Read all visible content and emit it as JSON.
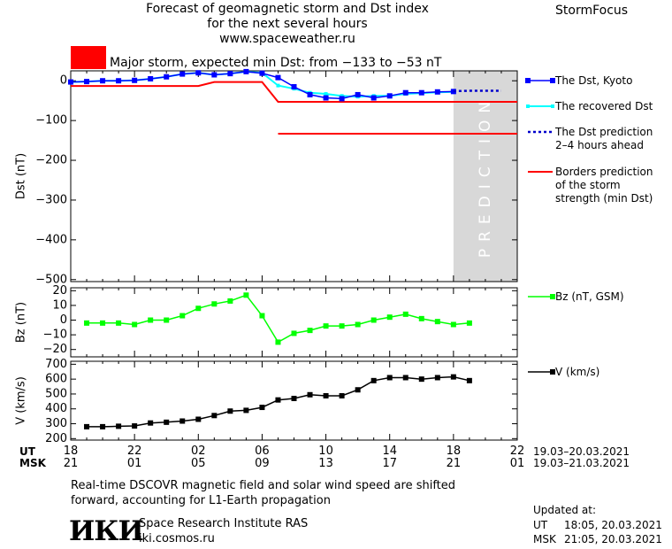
{
  "header": {
    "title_line1": "Forecast of geomagnetic storm and Dst index",
    "title_line2": "for the next several hours",
    "website": "www.spaceweather.ru",
    "brand": "StormFocus"
  },
  "storm_banner": {
    "text": "Major storm, expected min Dst: from −133 to −53 nT",
    "color": "#ff0000"
  },
  "prediction_label": "PREDICTION",
  "colors": {
    "dst": "#0000ff",
    "recovered": "#00ffff",
    "prediction": "#0000cc",
    "borders": "#ff0000",
    "bz": "#00ff00",
    "v": "#000000",
    "prediction_zone": "#d8d8d8"
  },
  "legend": {
    "dst": "The Dst, Kyoto",
    "recovered": "The recovered Dst",
    "prediction_line1": "The Dst prediction",
    "prediction_line2": "2–4 hours ahead",
    "borders_line1": "Borders prediction",
    "borders_line2": "of the storm",
    "borders_line3": "strength (min Dst)",
    "bz": "Bz (nT, GSM)",
    "v": "V (km/s)"
  },
  "time_axis": {
    "ut_label": "UT",
    "msk_label": "MSK",
    "ut_ticks": [
      "18",
      "22",
      "02",
      "06",
      "10",
      "14",
      "18",
      "22"
    ],
    "msk_ticks": [
      "21",
      "01",
      "05",
      "09",
      "13",
      "17",
      "21",
      "01"
    ],
    "ut_range": "19.03–20.03.2021",
    "msk_range": "19.03–21.03.2021"
  },
  "footer": {
    "note_line1": "Real-time DSCOVR magnetic field and solar wind speed are shifted",
    "note_line2": "forward, accounting for L1-Earth propagation",
    "logo_text": "ИКИ",
    "institute": "Space Research Institute RAS",
    "institute_site": "iki.cosmos.ru",
    "updated_label": "Updated at:",
    "updated_ut_label": "UT",
    "updated_ut": "18:05, 20.03.2021",
    "updated_msk_label": "MSK",
    "updated_msk": "21:05, 20.03.2021"
  },
  "chart_data": [
    {
      "type": "line",
      "ylabel": "Dst (nT)",
      "x_unit": "hours UT from 19.03.2021 00:00",
      "xlim": [
        18,
        46
      ],
      "ylim": [
        -505,
        25
      ],
      "yticks": [
        0,
        -100,
        -200,
        -300,
        -400,
        -500
      ],
      "prediction_zone": [
        42,
        46
      ],
      "series": [
        {
          "name": "The Dst, Kyoto",
          "x": [
            18,
            19,
            20,
            21,
            22,
            23,
            24,
            25,
            26,
            27,
            28,
            29,
            30,
            31,
            32,
            33,
            34,
            35,
            36,
            37,
            38,
            39,
            40,
            41,
            42
          ],
          "values": [
            -3,
            -2,
            0,
            0,
            1,
            5,
            10,
            17,
            20,
            15,
            18,
            23,
            19,
            8,
            -15,
            -35,
            -43,
            -45,
            -35,
            -43,
            -38,
            -30,
            -30,
            -28,
            -27
          ]
        },
        {
          "name": "The recovered Dst",
          "x": [
            18,
            19,
            20,
            21,
            22,
            23,
            24,
            25,
            26,
            27,
            28,
            29,
            30,
            31,
            32,
            33,
            34,
            35,
            36,
            37,
            38,
            39,
            40,
            41,
            42
          ],
          "values": [
            -3,
            -2,
            0,
            0,
            1,
            5,
            10,
            17,
            20,
            15,
            18,
            23,
            20,
            -12,
            -20,
            -30,
            -33,
            -38,
            -40,
            -38,
            -38,
            -33,
            -31,
            -29,
            -28
          ]
        },
        {
          "name": "The Dst prediction 2–4 hours ahead",
          "x": [
            42,
            43,
            44,
            45
          ],
          "values": [
            -26,
            -25,
            -25,
            -25
          ]
        },
        {
          "name": "Borders prediction of the storm strength (min Dst)",
          "segments": [
            {
              "x": [
                18,
                26,
                27,
                30,
                31,
                46
              ],
              "values": [
                -13,
                -13,
                -3,
                -3,
                -53,
                -53
              ]
            },
            {
              "x": [
                31,
                46
              ],
              "values": [
                -133,
                -133
              ]
            }
          ]
        }
      ]
    },
    {
      "type": "line",
      "ylabel": "Bz (nT)",
      "xlim": [
        18,
        46
      ],
      "ylim": [
        -25,
        22
      ],
      "yticks": [
        20,
        10,
        0,
        -10,
        -20
      ],
      "series": [
        {
          "name": "Bz (nT, GSM)",
          "x": [
            19,
            20,
            21,
            22,
            23,
            24,
            25,
            26,
            27,
            28,
            29,
            30,
            31,
            32,
            33,
            34,
            35,
            36,
            37,
            38,
            39,
            40,
            41,
            42,
            43
          ],
          "values": [
            -2,
            -2,
            -2,
            -3,
            0,
            0,
            3,
            8,
            11,
            13,
            17,
            3,
            -15,
            -9,
            -7,
            -4,
            -4,
            -3,
            0,
            2,
            4,
            1,
            -1,
            -3,
            -2
          ]
        }
      ]
    },
    {
      "type": "line",
      "ylabel": "V (km/s)",
      "xlim": [
        18,
        46
      ],
      "ylim": [
        190,
        720
      ],
      "yticks": [
        700,
        600,
        500,
        400,
        300,
        200
      ],
      "series": [
        {
          "name": "V (km/s)",
          "x": [
            19,
            20,
            21,
            22,
            23,
            24,
            25,
            26,
            27,
            28,
            29,
            30,
            31,
            32,
            33,
            34,
            35,
            36,
            37,
            38,
            39,
            40,
            41,
            42,
            43
          ],
          "values": [
            280,
            280,
            283,
            285,
            305,
            310,
            318,
            330,
            355,
            385,
            390,
            410,
            460,
            470,
            495,
            488,
            488,
            528,
            590,
            610,
            610,
            600,
            610,
            615,
            590
          ]
        }
      ]
    }
  ]
}
